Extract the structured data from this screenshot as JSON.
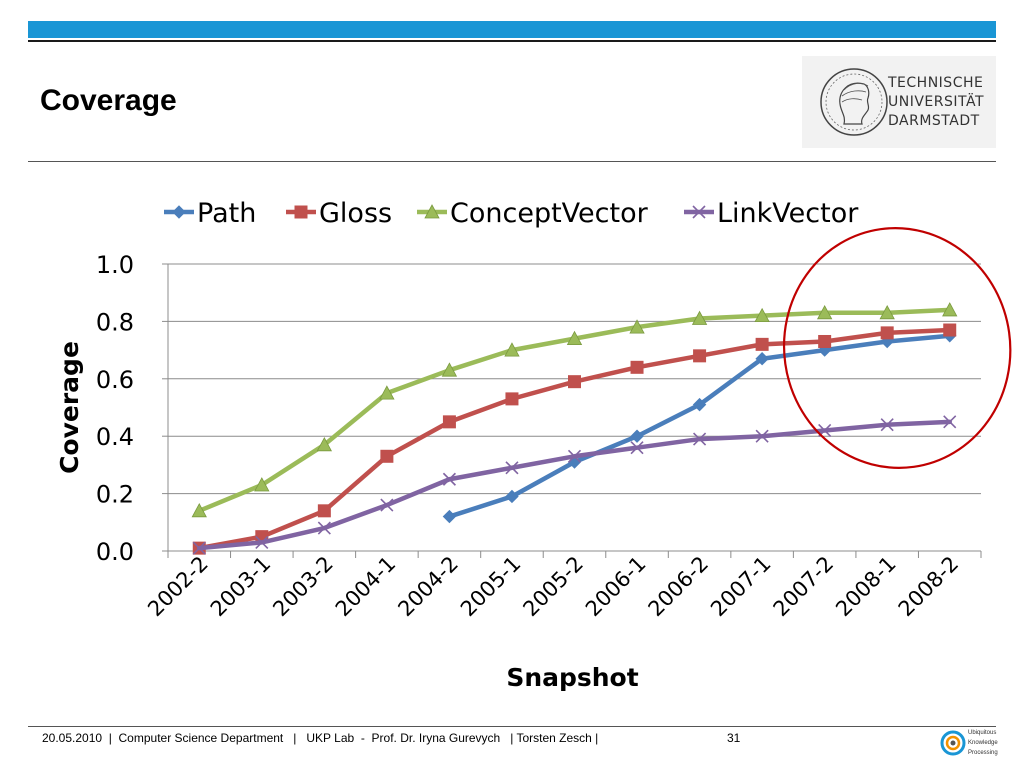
{
  "slide": {
    "title": "Coverage",
    "page_number": "31",
    "footer": "20.05.2010  |  Computer Science Department   |   UKP Lab  -  Prof. Dr. Iryna Gurevych   | Torsten Zesch |"
  },
  "logo": {
    "lines": [
      "TECHNISCHE",
      "UNIVERSITÄT",
      "DARMSTADT"
    ],
    "seal_icon": "athena-seal-icon"
  },
  "ukp_logo": {
    "lines": [
      "Ubiquitous",
      "Knowledge",
      "Processing"
    ],
    "icon": "ukp-swirl-icon"
  },
  "colors": {
    "top_bar": "#1a96d5",
    "path": "#4a7ebb",
    "gloss": "#c0504d",
    "concept": "#9bbb59",
    "link": "#8064a2",
    "annotation": "#c00000"
  },
  "chart_data": {
    "type": "line",
    "title": "",
    "xlabel": "Snapshot",
    "ylabel": "Coverage",
    "ylim": [
      0,
      1
    ],
    "yticks": [
      "0.0",
      "0.2",
      "0.4",
      "0.6",
      "0.8",
      "1.0"
    ],
    "grid": true,
    "legend_position": "top",
    "categories": [
      "2002-2",
      "2003-1",
      "2003-2",
      "2004-1",
      "2004-2",
      "2005-1",
      "2005-2",
      "2006-1",
      "2006-2",
      "2007-1",
      "2007-2",
      "2008-1",
      "2008-2"
    ],
    "series": [
      {
        "name": "Path",
        "marker": "diamond",
        "color": "#4a7ebb",
        "values": [
          null,
          null,
          null,
          null,
          0.12,
          0.19,
          0.31,
          0.4,
          0.51,
          0.67,
          0.7,
          0.73,
          0.75
        ]
      },
      {
        "name": "Gloss",
        "marker": "square",
        "color": "#c0504d",
        "values": [
          0.01,
          0.05,
          0.14,
          0.33,
          0.45,
          0.53,
          0.59,
          0.64,
          0.68,
          0.72,
          0.73,
          0.76,
          0.77
        ]
      },
      {
        "name": "ConceptVector",
        "marker": "triangle",
        "color": "#9bbb59",
        "values": [
          0.14,
          0.23,
          0.37,
          0.55,
          0.63,
          0.7,
          0.74,
          0.78,
          0.81,
          0.82,
          0.83,
          0.83,
          0.84
        ]
      },
      {
        "name": "LinkVector",
        "marker": "x",
        "color": "#8064a2",
        "values": [
          0.01,
          0.03,
          0.08,
          0.16,
          0.25,
          0.29,
          0.33,
          0.36,
          0.39,
          0.4,
          0.42,
          0.44,
          0.45
        ]
      }
    ],
    "annotation": {
      "type": "ellipse",
      "encloses_categories": [
        "2007-2",
        "2008-1",
        "2008-2"
      ],
      "color": "#c00000"
    }
  }
}
